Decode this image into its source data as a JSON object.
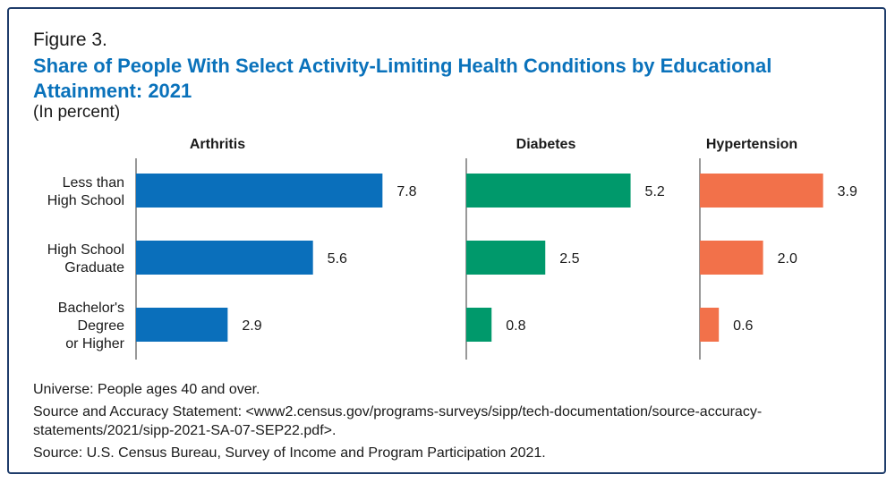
{
  "figure_label": "Figure 3.",
  "title": "Share of People With Select Activity-Limiting Health Conditions by Educational Attainment: 2021",
  "subtitle": "(In percent)",
  "notes": {
    "universe": "Universe: People ages 40 and over.",
    "accuracy": "Source and Accuracy Statement: <www2.census.gov/programs-surveys/sipp/tech-documentation/source-accuracy-statements/2021/sipp-2021-SA-07-SEP22.pdf>.",
    "source": "Source: U.S. Census Bureau, Survey of Income and Program Participation 2021."
  },
  "chart_data": {
    "type": "bar",
    "orientation": "horizontal",
    "categories": [
      [
        "Less than",
        "High School"
      ],
      [
        "High School",
        "Graduate"
      ],
      [
        "Bachelor's",
        "Degree",
        "or Higher"
      ]
    ],
    "series": [
      {
        "name": "Arthritis",
        "color": "#0a6fbb",
        "values": [
          7.8,
          5.6,
          2.9
        ]
      },
      {
        "name": "Diabetes",
        "color": "#00996b",
        "values": [
          5.2,
          2.5,
          0.8
        ]
      },
      {
        "name": "Hypertension",
        "color": "#f2714a",
        "values": [
          3.9,
          2.0,
          0.6
        ]
      }
    ],
    "xlim": [
      0,
      8
    ],
    "grid": false,
    "data_labels": true
  }
}
